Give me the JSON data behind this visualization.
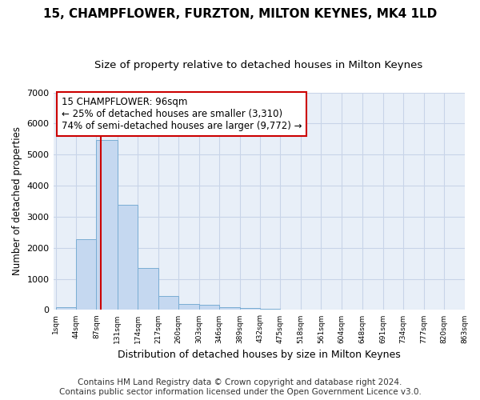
{
  "title": "15, CHAMPFLOWER, FURZTON, MILTON KEYNES, MK4 1LD",
  "subtitle": "Size of property relative to detached houses in Milton Keynes",
  "xlabel": "Distribution of detached houses by size in Milton Keynes",
  "ylabel": "Number of detached properties",
  "bar_edges": [
    1,
    44,
    87,
    131,
    174,
    217,
    260,
    303,
    346,
    389,
    432,
    475,
    518,
    561,
    604,
    648,
    691,
    734,
    777,
    820,
    863
  ],
  "bar_heights": [
    80,
    2280,
    5480,
    3380,
    1350,
    460,
    190,
    160,
    95,
    65,
    40,
    0,
    0,
    0,
    0,
    0,
    0,
    0,
    0,
    0
  ],
  "bar_color": "#c5d8f0",
  "bar_edge_color": "#7aadd4",
  "property_size": 96,
  "vline_color": "#cc0000",
  "annotation_text": "15 CHAMPFLOWER: 96sqm\n← 25% of detached houses are smaller (3,310)\n74% of semi-detached houses are larger (9,772) →",
  "annotation_box_color": "#ffffff",
  "annotation_box_edge": "#cc0000",
  "ylim": [
    0,
    7000
  ],
  "yticks": [
    0,
    1000,
    2000,
    3000,
    4000,
    5000,
    6000,
    7000
  ],
  "footer_line1": "Contains HM Land Registry data © Crown copyright and database right 2024.",
  "footer_line2": "Contains public sector information licensed under the Open Government Licence v3.0.",
  "fig_bg_color": "#ffffff",
  "plot_bg_color": "#e8eff8",
  "grid_color": "#c8d4e8",
  "title_fontsize": 11,
  "subtitle_fontsize": 9.5,
  "footer_fontsize": 7.5,
  "annot_fontsize": 8.5
}
